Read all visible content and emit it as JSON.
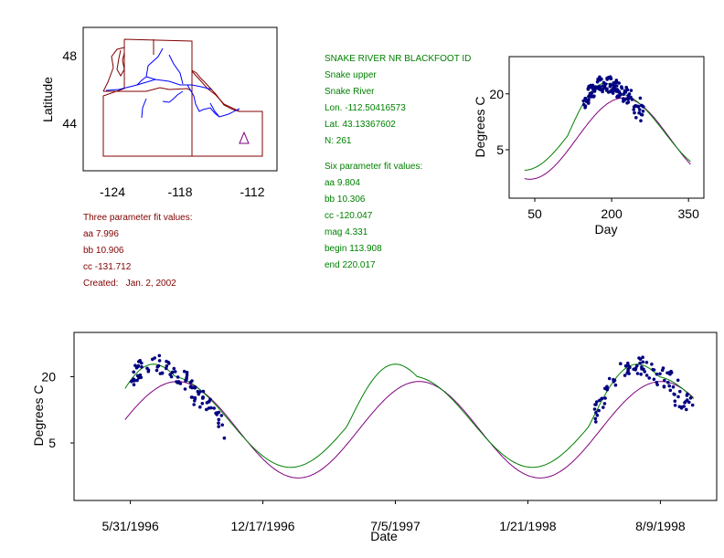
{
  "colors": {
    "fit_three": "#800080",
    "fit_six": "#008000",
    "points": "#000080",
    "station_info": "#008000",
    "three_param": "#800000",
    "river": "#0000ff",
    "border": "#800000"
  },
  "station": {
    "name": "SNAKE RIVER NR BLACKFOOT ID",
    "region": "Snake upper",
    "river": "Snake River",
    "lon": "Lon. -112.50416573",
    "lat": "Lat. 43.13367602",
    "n": "N: 261"
  },
  "six_fit": {
    "heading": "Six parameter fit values:",
    "lines": [
      "aa 9.804",
      "bb 10.306",
      "cc -120.047",
      "mag 4.331",
      "begin 113.908",
      "end 220.017"
    ]
  },
  "three_fit": {
    "heading": "Three parameter fit values:",
    "lines": [
      "aa 7.996",
      "bb 10.906",
      "cc -131.712",
      "Created:   Jan. 2, 2002"
    ]
  },
  "chart_data": [
    {
      "type": "map",
      "ylabel": "Latitude",
      "xticks": [
        "-124",
        "-118",
        "-112"
      ],
      "yticks": [
        "48",
        "44"
      ],
      "xlim": [
        -126.3,
        -110.2
      ],
      "ylim": [
        41.5,
        50.1
      ],
      "station_marker": {
        "lon": -112.5,
        "lat": 43.1,
        "symbol": "triangle"
      }
    },
    {
      "type": "scatter",
      "xlabel": "Day",
      "ylabel": "Degrees C",
      "xlim": [
        0,
        380
      ],
      "ylim": [
        -8,
        30
      ],
      "xticks": [
        50,
        200,
        350
      ],
      "yticks": [
        5,
        20
      ],
      "fit_three": {
        "aa": 7.996,
        "bb": 10.906,
        "cc": -131.712
      },
      "fit_six": {
        "aa": 9.804,
        "bb": 10.306,
        "cc": -120.047,
        "mag": 4.331,
        "begin": 113.908,
        "end": 220.017
      },
      "curve_days": [
        30,
        355
      ],
      "scatter": {
        "day_range": [
          145,
          263
        ],
        "count": 261
      }
    },
    {
      "type": "scatter",
      "xlabel": "Date",
      "ylabel": "Degrees C",
      "ylim": [
        -8,
        30
      ],
      "yticks": [
        5,
        20
      ],
      "xticks": [
        {
          "label": "5/31/1996",
          "day": 0
        },
        {
          "label": "12/17/1996",
          "day": 200
        },
        {
          "label": "7/5/1997",
          "day": 400
        },
        {
          "label": "1/21/1998",
          "day": 600
        },
        {
          "label": "8/9/1998",
          "day": 800
        }
      ],
      "xlim": [
        -85,
        885
      ],
      "start_doy": 152,
      "scatter_ranges": [
        [
          0,
          143
        ],
        [
          700,
          850
        ]
      ]
    }
  ]
}
